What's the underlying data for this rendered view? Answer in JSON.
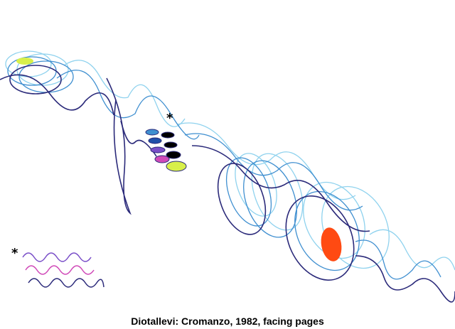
{
  "caption": "Diotallevi: Cromanzo, 1982, facing pages",
  "marks": {
    "asterisk_top": "*",
    "asterisk_bottom": "*"
  },
  "colors": {
    "background": "#ffffff",
    "navy": "#2b2a7a",
    "deep_blue": "#1f4fa8",
    "mid_blue": "#3f8fd0",
    "light_blue": "#8fd2ee",
    "orange": "#ff4a12",
    "yellow_green": "#d8f04a",
    "magenta": "#d04ab8",
    "violet": "#7a4fc8",
    "black": "#000000"
  }
}
